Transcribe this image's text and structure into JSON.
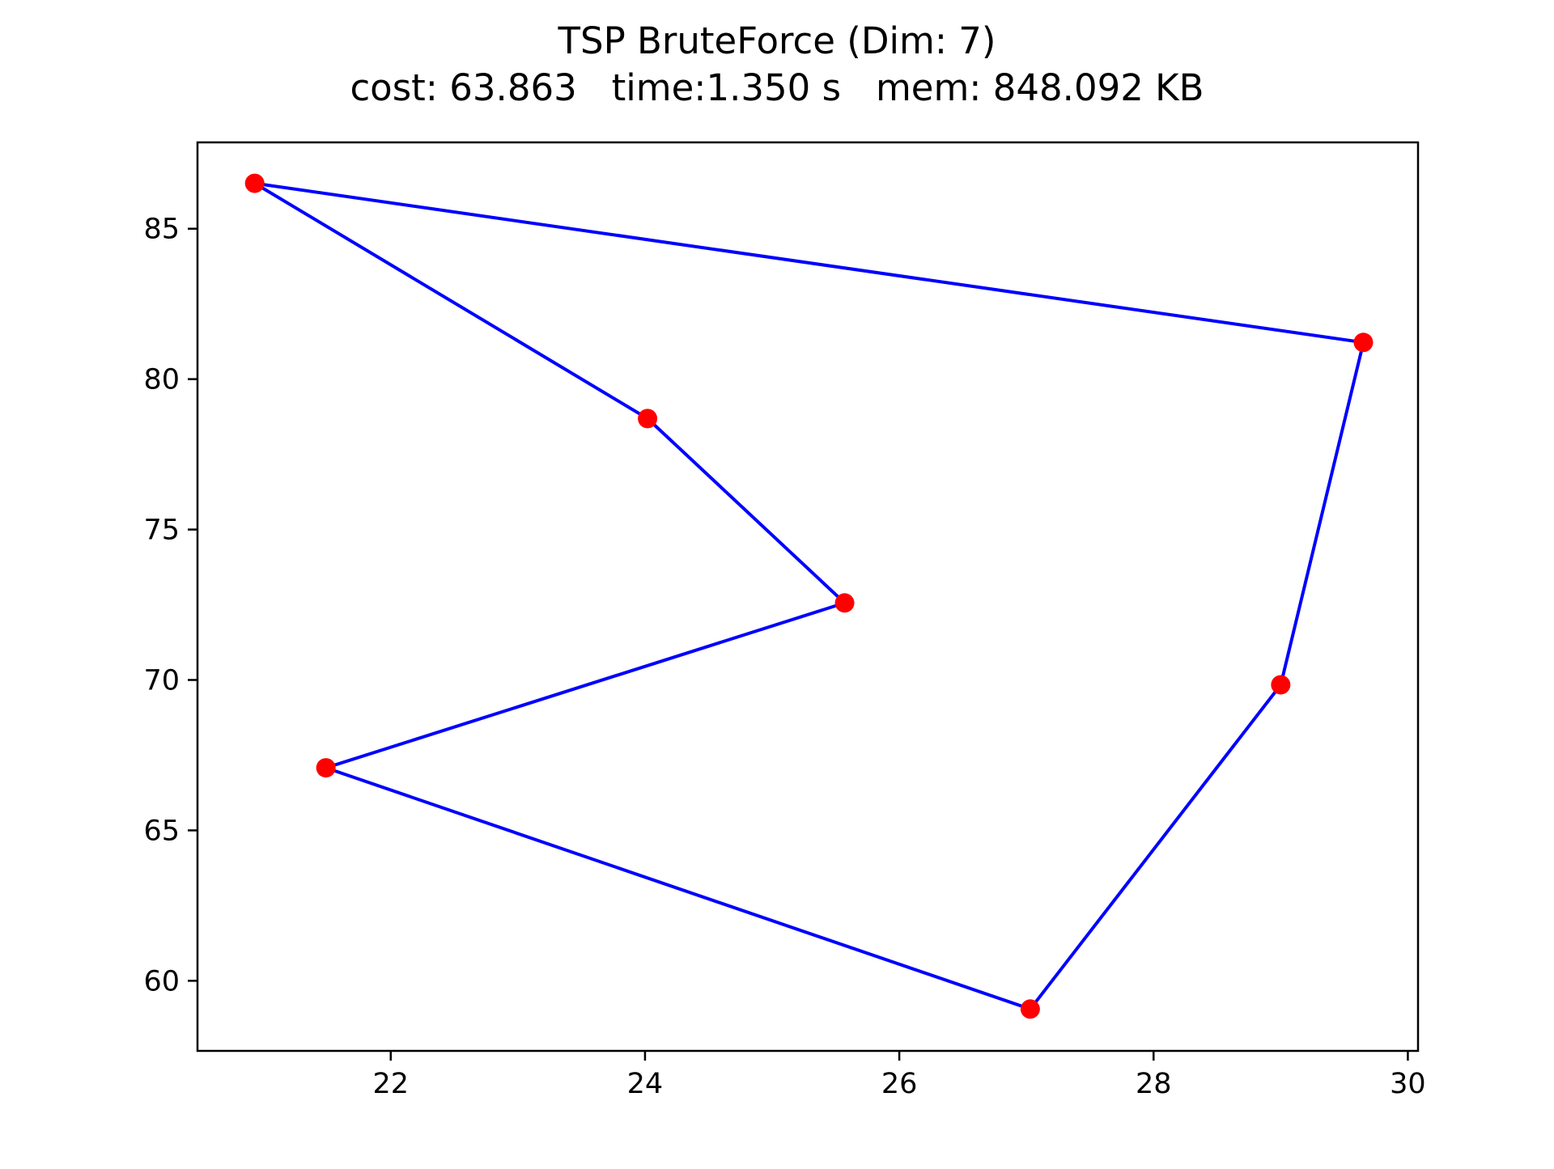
{
  "chart_data": {
    "type": "line",
    "title": "TSP BruteForce (Dim: 7)",
    "subtitle": "cost: 63.863   time:1.350 s   mem: 848.092 KB",
    "xlabel": "",
    "ylabel": "",
    "xlim": [
      20.48,
      30.08
    ],
    "ylim": [
      57.67,
      87.87
    ],
    "x_ticks": [
      22,
      24,
      26,
      28,
      30
    ],
    "y_ticks": [
      60,
      65,
      70,
      75,
      80,
      85
    ],
    "grid": false,
    "legend": "none",
    "series": [
      {
        "x": [
          20.93,
          29.65,
          29.0,
          27.03,
          21.49,
          25.57,
          24.02,
          20.93
        ],
        "y": [
          86.51,
          81.22,
          69.84,
          59.06,
          67.08,
          72.56,
          78.69,
          86.51
        ]
      }
    ],
    "line_color": "#0000ff",
    "marker_color": "#ff0000"
  }
}
